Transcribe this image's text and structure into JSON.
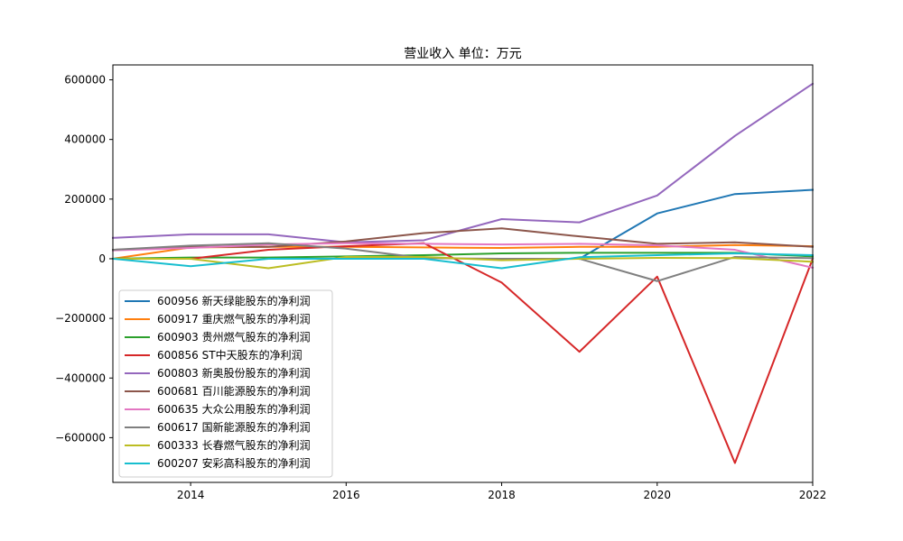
{
  "chart_data": {
    "type": "line",
    "title": "营业收入 单位：万元",
    "xlabel": "",
    "ylabel": "",
    "xlim": [
      2013,
      2022
    ],
    "ylim": [
      -750000,
      650000
    ],
    "x": [
      2013,
      2014,
      2015,
      2016,
      2017,
      2018,
      2019,
      2020,
      2021,
      2022
    ],
    "x_ticks": [
      2014,
      2016,
      2018,
      2020,
      2022
    ],
    "y_ticks": [
      -600000,
      -400000,
      -200000,
      0,
      200000,
      400000,
      600000
    ],
    "grid": false,
    "legend_position": "lower-left",
    "series": [
      {
        "name": "600956 新天绿能股东的净利润",
        "color": "#1f77b4",
        "values": [
          null,
          null,
          null,
          null,
          null,
          null,
          0,
          152000,
          217000,
          231000
        ]
      },
      {
        "name": "600917 重庆燃气股东的净利润",
        "color": "#ff7f0e",
        "values": [
          0,
          38000,
          40000,
          40000,
          38000,
          36000,
          40000,
          40000,
          46000,
          42000
        ]
      },
      {
        "name": "600903 贵州燃气股东的净利润",
        "color": "#2ca02c",
        "values": [
          0,
          4000,
          4000,
          8000,
          12000,
          18000,
          20000,
          20000,
          20000,
          8000
        ]
      },
      {
        "name": "600856 ST中天股东的净利润",
        "color": "#d62728",
        "values": [
          null,
          0,
          30000,
          42000,
          52000,
          -80000,
          -312000,
          -60000,
          -685000,
          0
        ]
      },
      {
        "name": "600803 新奥股份股东的净利润",
        "color": "#9467bd",
        "values": [
          70000,
          82000,
          82000,
          55000,
          62000,
          133000,
          122000,
          212000,
          412000,
          587000
        ]
      },
      {
        "name": "600681 百川能源股东的净利润",
        "color": "#8c564b",
        "values": [
          30000,
          40000,
          40000,
          58000,
          86000,
          102000,
          75000,
          50000,
          55000,
          40000
        ]
      },
      {
        "name": "600635 大众公用股东的净利润",
        "color": "#e377c2",
        "values": [
          28000,
          36000,
          48000,
          52000,
          50000,
          48000,
          50000,
          45000,
          30000,
          -30000
        ]
      },
      {
        "name": "600617 国新能源股东的净利润",
        "color": "#7f7f7f",
        "values": [
          30000,
          44000,
          52000,
          34000,
          2000,
          0,
          0,
          -75000,
          6000,
          2000
        ]
      },
      {
        "name": "600333 长春燃气股东的净利润",
        "color": "#bcbd22",
        "values": [
          0,
          0,
          -32000,
          6000,
          6000,
          -5000,
          0,
          3000,
          2000,
          -10000
        ]
      },
      {
        "name": "600207 安彩高科股东的净利润",
        "color": "#17becf",
        "values": [
          0,
          -25000,
          0,
          0,
          0,
          -32000,
          5000,
          12000,
          18000,
          12000
        ]
      }
    ]
  }
}
